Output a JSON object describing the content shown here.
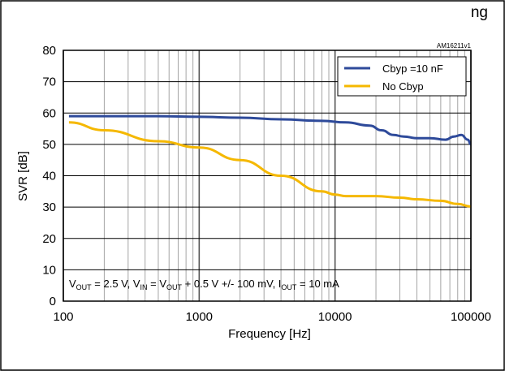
{
  "header": {
    "partial_title": "ng"
  },
  "chart_data": {
    "type": "line",
    "xlabel": "Frequency [Hz]",
    "ylabel": "SVR [dB]",
    "x_scale": "log",
    "xlim": [
      100,
      100000
    ],
    "ylim": [
      0,
      80
    ],
    "x_ticks": [
      100,
      1000,
      10000,
      100000
    ],
    "x_tick_labels": [
      "100",
      "1000",
      "10000",
      "100000"
    ],
    "y_ticks": [
      0,
      10,
      20,
      30,
      40,
      50,
      60,
      70,
      80
    ],
    "y_tick_labels": [
      "0",
      "10",
      "20",
      "30",
      "40",
      "50",
      "60",
      "70",
      "80"
    ],
    "grid": true,
    "legend_position": "top-right",
    "figure_id": "AM16211v1",
    "annotation": {
      "segments": [
        {
          "t": "V",
          "s": "n"
        },
        {
          "t": "OUT",
          "s": "sub"
        },
        {
          "t": " = 2.5 V, V",
          "s": "n"
        },
        {
          "t": "IN",
          "s": "sub"
        },
        {
          "t": " = V",
          "s": "n"
        },
        {
          "t": "OUT",
          "s": "sub"
        },
        {
          "t": " + 0.5 V +/- 100 mV, I",
          "s": "n"
        },
        {
          "t": "OUT",
          "s": "sub"
        },
        {
          "t": " = 10 mA",
          "s": "n"
        }
      ]
    },
    "series": [
      {
        "name": "Cbyp =10 nF",
        "color": "#2e4a9a",
        "x": [
          110,
          200,
          500,
          1000,
          2000,
          4000,
          8000,
          12000,
          18000,
          22000,
          27000,
          32000,
          40000,
          50000,
          65000,
          75000,
          85000,
          95000,
          100000
        ],
        "y": [
          59,
          59,
          59,
          58.8,
          58.5,
          58,
          57.5,
          57,
          56,
          54.5,
          53,
          52.5,
          52,
          52,
          51.5,
          52.5,
          53,
          51.5,
          50
        ]
      },
      {
        "name": "No Cbyp",
        "color": "#f5b800",
        "x": [
          110,
          200,
          500,
          1000,
          2000,
          4000,
          8000,
          10000,
          12000,
          15000,
          20000,
          30000,
          40000,
          60000,
          80000,
          100000
        ],
        "y": [
          57,
          54.5,
          51,
          49,
          45,
          40,
          35,
          34,
          33.5,
          33.5,
          33.5,
          33,
          32.5,
          32,
          31,
          30.2
        ]
      }
    ]
  }
}
